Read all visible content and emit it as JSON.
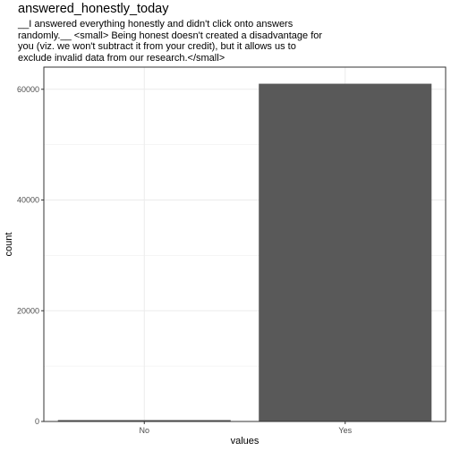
{
  "chart_data": {
    "type": "bar",
    "title": "answered_honestly_today",
    "subtitle_lines": [
      "__I answered everything honestly and didn't click onto answers",
      "randomly.__ <small> Being honest doesn't created a disadvantage for",
      "you (viz. we won't subtract it from your credit), but it allows us to",
      "exclude invalid data from our research.</small>"
    ],
    "categories": [
      "No",
      "Yes"
    ],
    "values": [
      250,
      61000
    ],
    "xlabel": "values",
    "ylabel": "count",
    "ylim": [
      0,
      64000
    ],
    "yticks": [
      0,
      20000,
      40000,
      60000
    ],
    "grid": true,
    "bar_color": "#595959",
    "grid_color": "#ebebeb",
    "panel_border_color": "#333333"
  }
}
